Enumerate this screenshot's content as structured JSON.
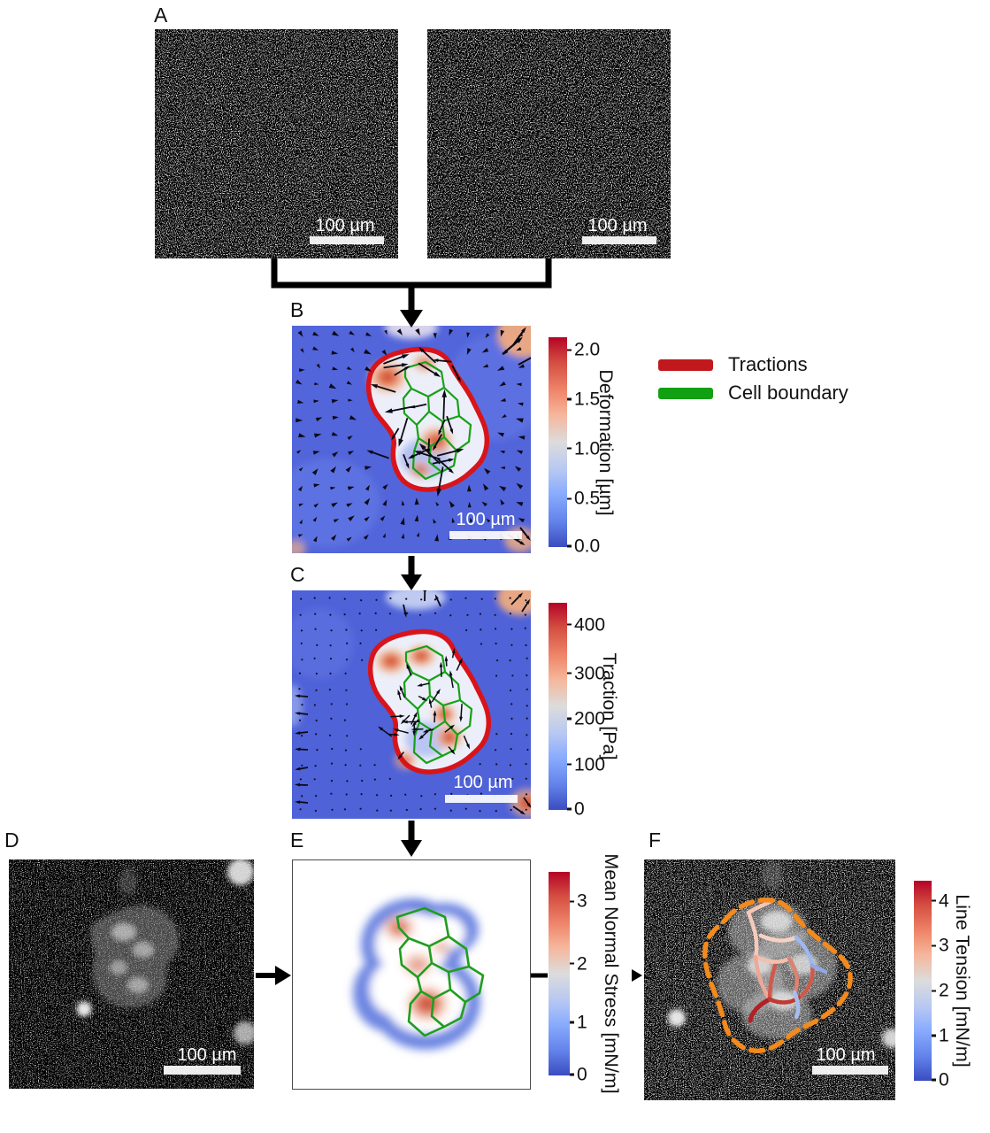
{
  "panels": {
    "a": {
      "label": "A",
      "image1": {
        "scalebar_label": "100 µm"
      },
      "image2": {
        "scalebar_label": "100 µm"
      }
    },
    "b": {
      "label": "B",
      "scalebar_label": "100 µm",
      "colorbar": {
        "title": "Deformation [µm]",
        "ticks": [
          "2.0",
          "1.5",
          "1.0",
          "0.5",
          "0.0"
        ]
      },
      "legend": {
        "items": [
          {
            "label": "Tractions",
            "color": "#c1181d"
          },
          {
            "label": "Cell boundary",
            "color": "#12a012"
          }
        ]
      }
    },
    "c": {
      "label": "C",
      "scalebar_label": "100 µm",
      "colorbar": {
        "title": "Traction [Pa]",
        "ticks": [
          "400",
          "300",
          "200",
          "100",
          "0"
        ]
      }
    },
    "d": {
      "label": "D",
      "scalebar_label": "100 µm"
    },
    "e": {
      "label": "E",
      "colorbar": {
        "title": "Mean Normal Stress [mN/m]",
        "ticks": [
          "3",
          "2",
          "1",
          "0"
        ]
      }
    },
    "f": {
      "label": "F",
      "scalebar_label": "100 µm",
      "colorbar": {
        "title": "Line Tension [mN/m]",
        "ticks": [
          "4",
          "3",
          "2",
          "1",
          "0"
        ]
      }
    }
  },
  "colors": {
    "colormap": "coolwarm",
    "colormap_low": "#3b4cc0",
    "colormap_mid": "#dcdcdc",
    "colormap_high": "#b40426",
    "traction_boundary": "#d8141a",
    "cell_boundary": "#18a018",
    "colony_outline_dashed": "#f28a1d"
  }
}
